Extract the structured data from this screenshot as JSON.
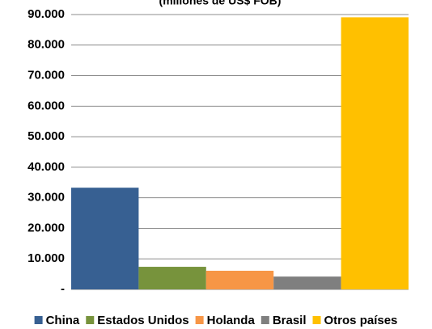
{
  "chart_data": {
    "type": "bar",
    "title": "(millones de US$ FOB)",
    "series": [
      {
        "name": "China",
        "color": "#376092",
        "values": [
          33300
        ]
      },
      {
        "name": "Estados Unidos",
        "color": "#77933c",
        "values": [
          7400
        ]
      },
      {
        "name": "Holanda",
        "color": "#f79646",
        "values": [
          6100
        ]
      },
      {
        "name": "Brasil",
        "color": "#7f7f7f",
        "values": [
          4200
        ]
      },
      {
        "name": "Otros países",
        "color": "#ffc000",
        "values": [
          89100
        ]
      }
    ],
    "ylim": [
      0,
      90000
    ],
    "yticks": [
      {
        "value": 0,
        "label": "-"
      },
      {
        "value": 10000,
        "label": "10.000"
      },
      {
        "value": 20000,
        "label": "20.000"
      },
      {
        "value": 30000,
        "label": "30.000"
      },
      {
        "value": 40000,
        "label": "40.000"
      },
      {
        "value": 50000,
        "label": "50.000"
      },
      {
        "value": 60000,
        "label": "60.000"
      },
      {
        "value": 70000,
        "label": "70.000"
      },
      {
        "value": 80000,
        "label": "80.000"
      },
      {
        "value": 90000,
        "label": "90.000"
      }
    ],
    "grid": true,
    "legend": "bottom"
  }
}
